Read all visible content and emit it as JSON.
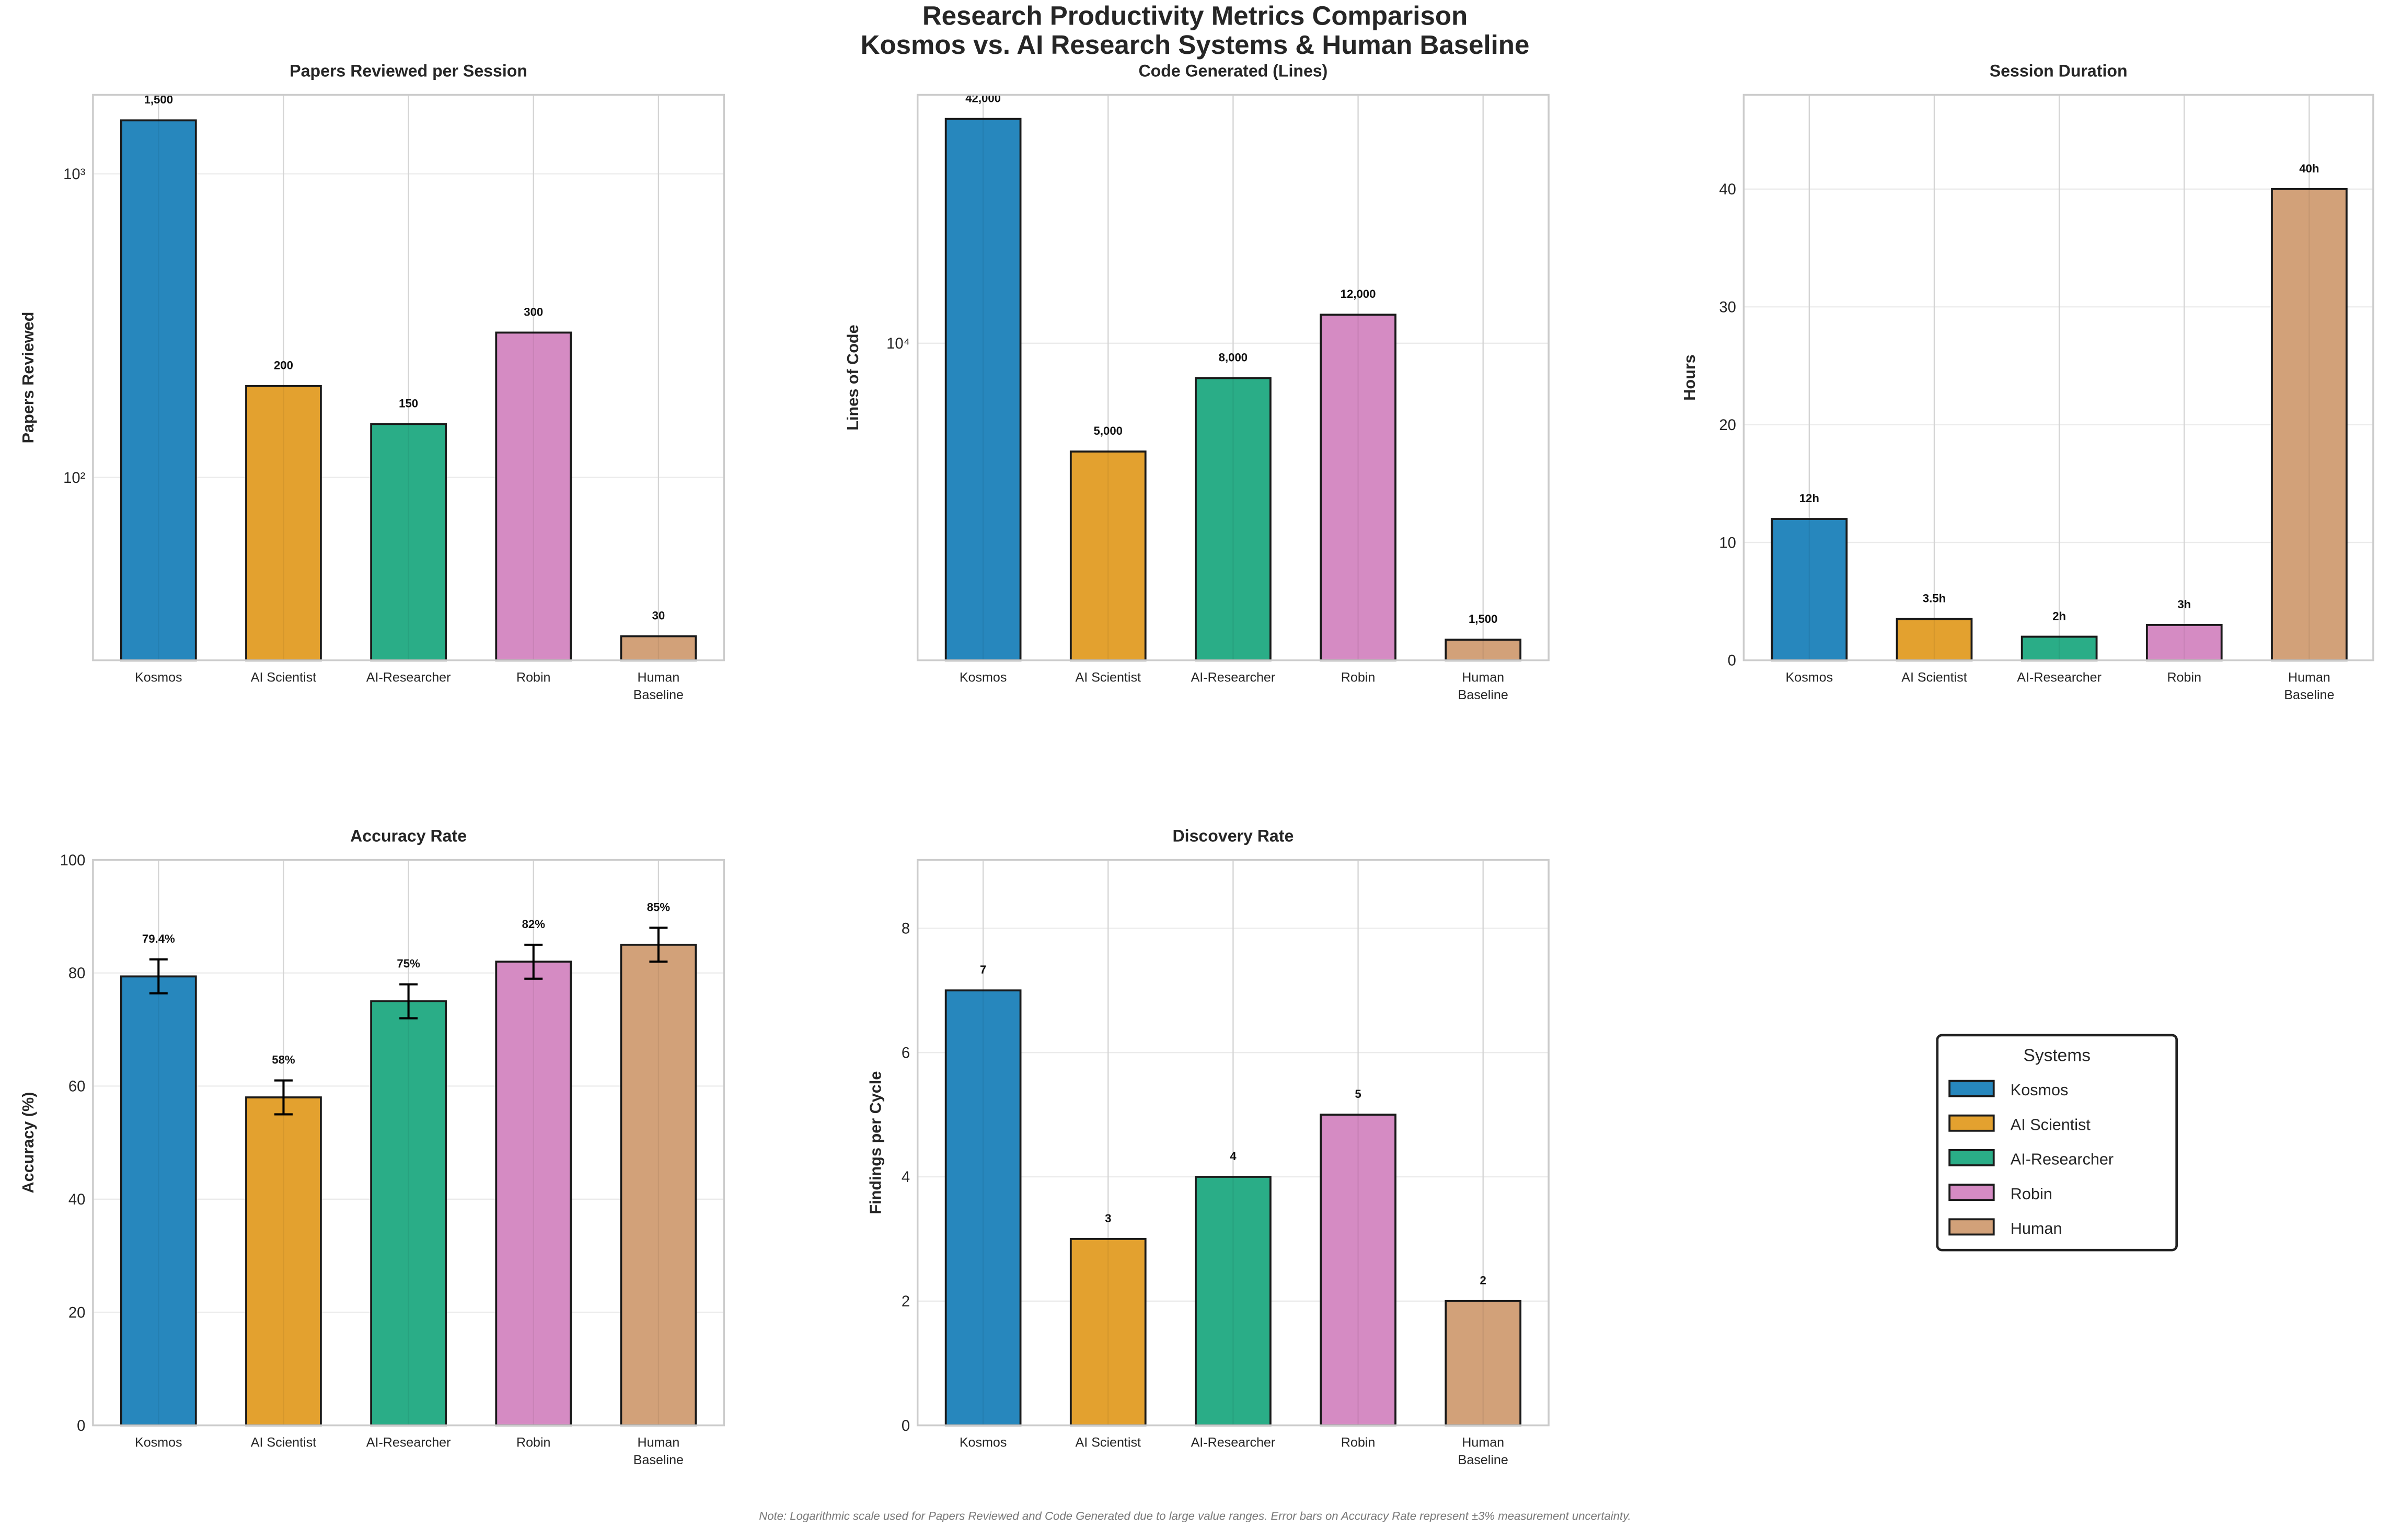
{
  "title_line1": "Research Productivity Metrics Comparison",
  "title_line2": "Kosmos vs. AI Research Systems & Human Baseline",
  "note": "Note: Logarithmic scale used for Papers Reviewed and Code Generated due to large value ranges. Error bars on Accuracy Rate represent ±3% measurement uncertainty.",
  "colors": {
    "Kosmos": "#2787bd",
    "AI Scientist": "#e3a12f",
    "AI-Researcher": "#2aad87",
    "Robin": "#d58bc3",
    "Human": "#d2a179"
  },
  "legend": {
    "title": "Systems",
    "entries": [
      "Kosmos",
      "AI Scientist",
      "AI-Researcher",
      "Robin",
      "Human"
    ]
  },
  "chart_data": [
    {
      "type": "bar",
      "title": "Papers Reviewed per Session",
      "ylabel": "Papers Reviewed",
      "yscale": "log",
      "ylim": [
        25,
        1820
      ],
      "categories": [
        "Kosmos",
        "AI Scientist",
        "AI-Researcher",
        "Robin",
        "Human\nBaseline"
      ],
      "values": [
        1500,
        200,
        150,
        300,
        30
      ],
      "value_labels": [
        "1,500",
        "200",
        "150",
        "300",
        "30"
      ],
      "yticks": [
        {
          "value": 100,
          "label": "10²"
        },
        {
          "value": 1000,
          "label": "10³"
        }
      ],
      "grid": true
    },
    {
      "type": "bar",
      "title": "Code Generated (Lines)",
      "ylabel": "Lines of Code",
      "yscale": "log",
      "ylim": [
        1315,
        49000
      ],
      "categories": [
        "Kosmos",
        "AI Scientist",
        "AI-Researcher",
        "Robin",
        "Human\nBaseline"
      ],
      "values": [
        42000,
        5000,
        8000,
        12000,
        1500
      ],
      "value_labels": [
        "42,000",
        "5,000",
        "8,000",
        "12,000",
        "1,500"
      ],
      "yticks": [
        {
          "value": 10000,
          "label": "10⁴"
        }
      ],
      "grid": true
    },
    {
      "type": "bar",
      "title": "Session Duration",
      "ylabel": "Hours",
      "yscale": "linear",
      "ylim": [
        0,
        48
      ],
      "categories": [
        "Kosmos",
        "AI Scientist",
        "AI-Researcher",
        "Robin",
        "Human\nBaseline"
      ],
      "values": [
        12,
        3.5,
        2,
        3,
        40
      ],
      "value_labels": [
        "12h",
        "3.5h",
        "2h",
        "3h",
        "40h"
      ],
      "yticks": [
        {
          "value": 0,
          "label": "0"
        },
        {
          "value": 10,
          "label": "10"
        },
        {
          "value": 20,
          "label": "20"
        },
        {
          "value": 30,
          "label": "30"
        },
        {
          "value": 40,
          "label": "40"
        }
      ],
      "grid": true
    },
    {
      "type": "bar",
      "title": "Accuracy Rate",
      "ylabel": "Accuracy (%)",
      "yscale": "linear",
      "ylim": [
        0,
        100
      ],
      "categories": [
        "Kosmos",
        "AI Scientist",
        "AI-Researcher",
        "Robin",
        "Human\nBaseline"
      ],
      "values": [
        79.4,
        58,
        75,
        82,
        85
      ],
      "value_labels": [
        "79.4%",
        "58%",
        "75%",
        "82%",
        "85%"
      ],
      "errors": [
        3,
        3,
        3,
        3,
        3
      ],
      "yticks": [
        {
          "value": 0,
          "label": "0"
        },
        {
          "value": 20,
          "label": "20"
        },
        {
          "value": 40,
          "label": "40"
        },
        {
          "value": 60,
          "label": "60"
        },
        {
          "value": 80,
          "label": "80"
        },
        {
          "value": 100,
          "label": "100"
        }
      ],
      "grid": true
    },
    {
      "type": "bar",
      "title": "Discovery Rate",
      "ylabel": "Findings per Cycle",
      "yscale": "linear",
      "ylim": [
        0,
        9.1
      ],
      "categories": [
        "Kosmos",
        "AI Scientist",
        "AI-Researcher",
        "Robin",
        "Human\nBaseline"
      ],
      "values": [
        7,
        3,
        4,
        5,
        2
      ],
      "value_labels": [
        "7",
        "3",
        "4",
        "5",
        "2"
      ],
      "yticks": [
        {
          "value": 0,
          "label": "0"
        },
        {
          "value": 2,
          "label": "2"
        },
        {
          "value": 4,
          "label": "4"
        },
        {
          "value": 6,
          "label": "6"
        },
        {
          "value": 8,
          "label": "8"
        }
      ],
      "grid": true
    }
  ]
}
